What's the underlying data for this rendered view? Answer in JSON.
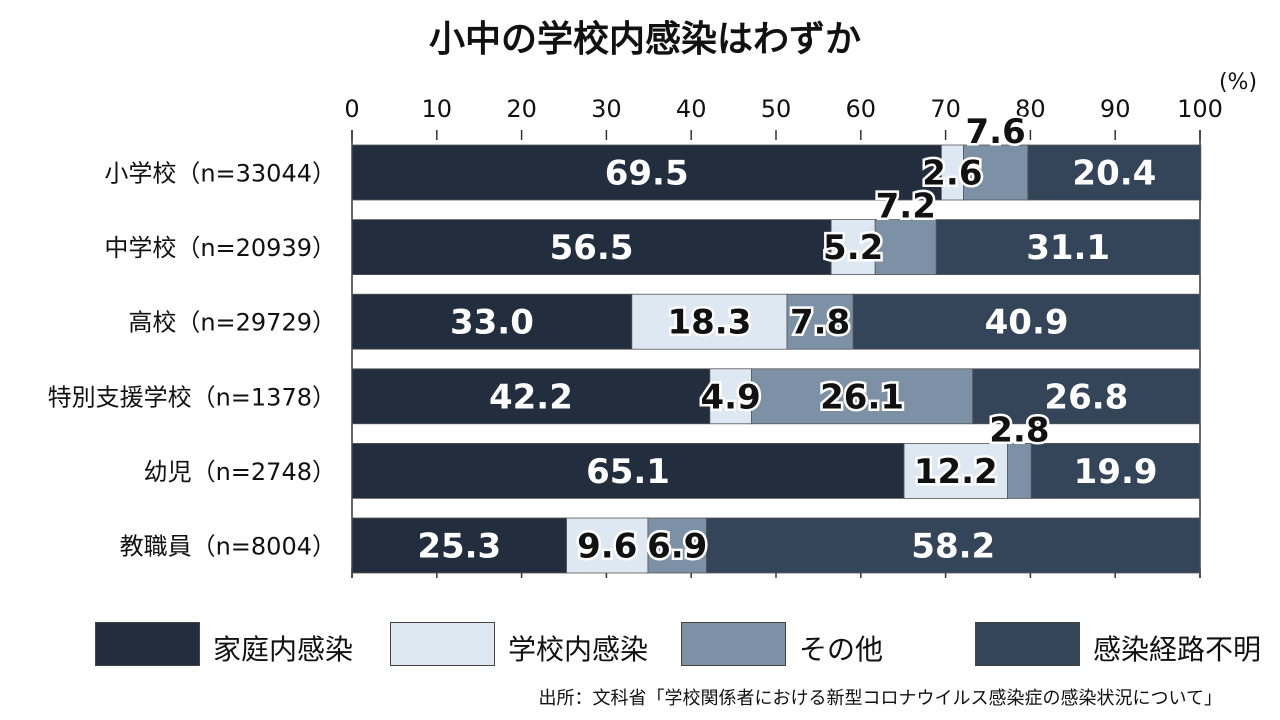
{
  "chart_data": {
    "type": "bar",
    "orientation": "horizontal",
    "stacked": true,
    "title": "小中の学校内感染はわずか",
    "unit": "(%)",
    "xlim": [
      0,
      100
    ],
    "ticks": [
      0,
      10,
      20,
      30,
      40,
      50,
      60,
      70,
      80,
      90,
      100
    ],
    "categories": [
      "小学校（n=33044）",
      "中学校（n=20939）",
      "高校（n=29729）",
      "特別支援学校（n=1378）",
      "幼児（n=2748）",
      "教職員（n=8004）"
    ],
    "series": [
      {
        "name": "家庭内感染",
        "color": "#222d3e",
        "values": [
          69.5,
          56.5,
          33.0,
          42.2,
          65.1,
          25.3
        ],
        "labels": [
          "69.5",
          "56.5",
          "33.0",
          "42.2",
          "65.1",
          "25.3"
        ]
      },
      {
        "name": "学校内感染",
        "color": "#dde8f2",
        "values": [
          2.6,
          5.2,
          18.3,
          4.9,
          12.2,
          9.6
        ],
        "labels": [
          "2.6",
          "5.2",
          "18.3",
          "4.9",
          "12.2",
          "9.6"
        ]
      },
      {
        "name": "その他",
        "color": "#7d91a6",
        "values": [
          7.6,
          7.2,
          7.8,
          26.1,
          2.8,
          6.9
        ],
        "labels": [
          "7.6",
          "7.2",
          "7.8",
          "26.1",
          "2.8",
          "6.9"
        ]
      },
      {
        "name": "感染経路不明",
        "color": "#344459",
        "values": [
          20.4,
          31.1,
          40.9,
          26.8,
          19.9,
          58.2
        ],
        "labels": [
          "20.4",
          "31.1",
          "40.9",
          "26.8",
          "19.9",
          "58.2"
        ]
      }
    ],
    "grid": false,
    "legend": "bottom"
  },
  "source": "出所：文科省「学校関係者における新型コロナウイルス感染症の感染状況について」"
}
